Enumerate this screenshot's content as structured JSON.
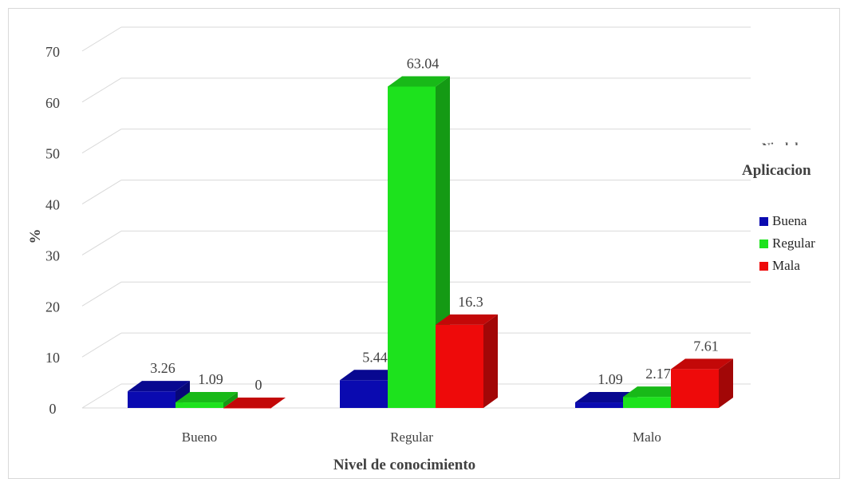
{
  "chart_data": {
    "type": "bar",
    "categories": [
      "Bueno",
      "Regular",
      "Malo"
    ],
    "series": [
      {
        "name": "Buena",
        "values": [
          3.26,
          5.44,
          1.09
        ],
        "color": "#0a0ab0"
      },
      {
        "name": "Regular",
        "values": [
          1.09,
          63.04,
          2.17
        ],
        "color": "#1de21d"
      },
      {
        "name": "Mala",
        "values": [
          0,
          16.3,
          7.61
        ],
        "color": "#ee0a0a"
      }
    ],
    "data_labels": [
      [
        "3.26",
        "5.44",
        "1.09"
      ],
      [
        "1.09",
        "63.04",
        "2.17"
      ],
      [
        "0",
        "16.3",
        "7.61"
      ]
    ],
    "ylim": [
      0,
      70
    ],
    "yticks": [
      "0",
      "10",
      "20",
      "30",
      "40",
      "50",
      "60",
      "70"
    ],
    "ylabel": "%",
    "xlabel": "Nivel de conocimiento",
    "legend_title": "Aplicacion",
    "legend_title_cut": "Nivel de",
    "legend_position": "right",
    "grid": true,
    "style": "3d-clustered-column"
  }
}
